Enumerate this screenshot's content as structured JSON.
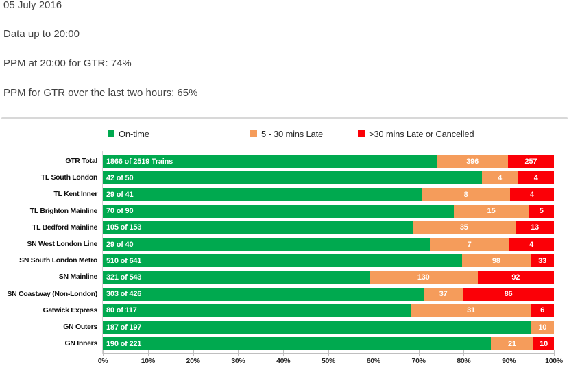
{
  "header": {
    "date": "05 July 2016",
    "data_up_to": "Data up to 20:00",
    "ppm_now": "PPM at 20:00 for GTR: 74%",
    "ppm_two_hours": "PPM for GTR over the last two hours: 65%"
  },
  "chart_data": {
    "type": "bar",
    "orientation": "horizontal",
    "stacked": true,
    "legend_position": "top",
    "xlim": [
      0,
      100
    ],
    "grid": false,
    "x_ticks": [
      "0%",
      "10%",
      "20%",
      "30%",
      "40%",
      "50%",
      "60%",
      "70%",
      "80%",
      "90%",
      "100%"
    ],
    "legend": [
      {
        "label": "On-time",
        "color": "#00A94F"
      },
      {
        "label": "5 - 30 mins Late",
        "color": "#F59C5B"
      },
      {
        "label": ">30 mins Late or Cancelled",
        "color": "#FB0007"
      }
    ],
    "categories": [
      "GTR Total",
      "TL South London",
      "TL Kent Inner",
      "TL Brighton Mainline",
      "TL Bedford Mainline",
      "SN West London Line",
      "SN South London Metro",
      "SN Mainline",
      "SN Coastway (Non-London)",
      "Gatwick Express",
      "GN Outers",
      "GN Inners"
    ],
    "totals": [
      2519,
      50,
      41,
      90,
      153,
      40,
      641,
      543,
      426,
      117,
      197,
      221
    ],
    "series": [
      {
        "name": "On-time",
        "values": [
          1866,
          42,
          29,
          70,
          105,
          29,
          510,
          321,
          303,
          80,
          187,
          190
        ]
      },
      {
        "name": "5 - 30 mins Late",
        "values": [
          396,
          4,
          8,
          15,
          35,
          7,
          98,
          130,
          37,
          31,
          10,
          21
        ]
      },
      {
        "name": ">30 mins Late or Cancelled",
        "values": [
          257,
          4,
          4,
          5,
          13,
          4,
          33,
          92,
          86,
          6,
          0,
          10
        ]
      }
    ],
    "on_time_labels": [
      "1866 of 2519 Trains",
      "42 of 50",
      "29 of 41",
      "70 of 90",
      "105 of 153",
      "29 of 40",
      "510 of 641",
      "321 of 543",
      "303 of 426",
      "80 of 117",
      "187 of 197",
      "190 of 221"
    ]
  }
}
